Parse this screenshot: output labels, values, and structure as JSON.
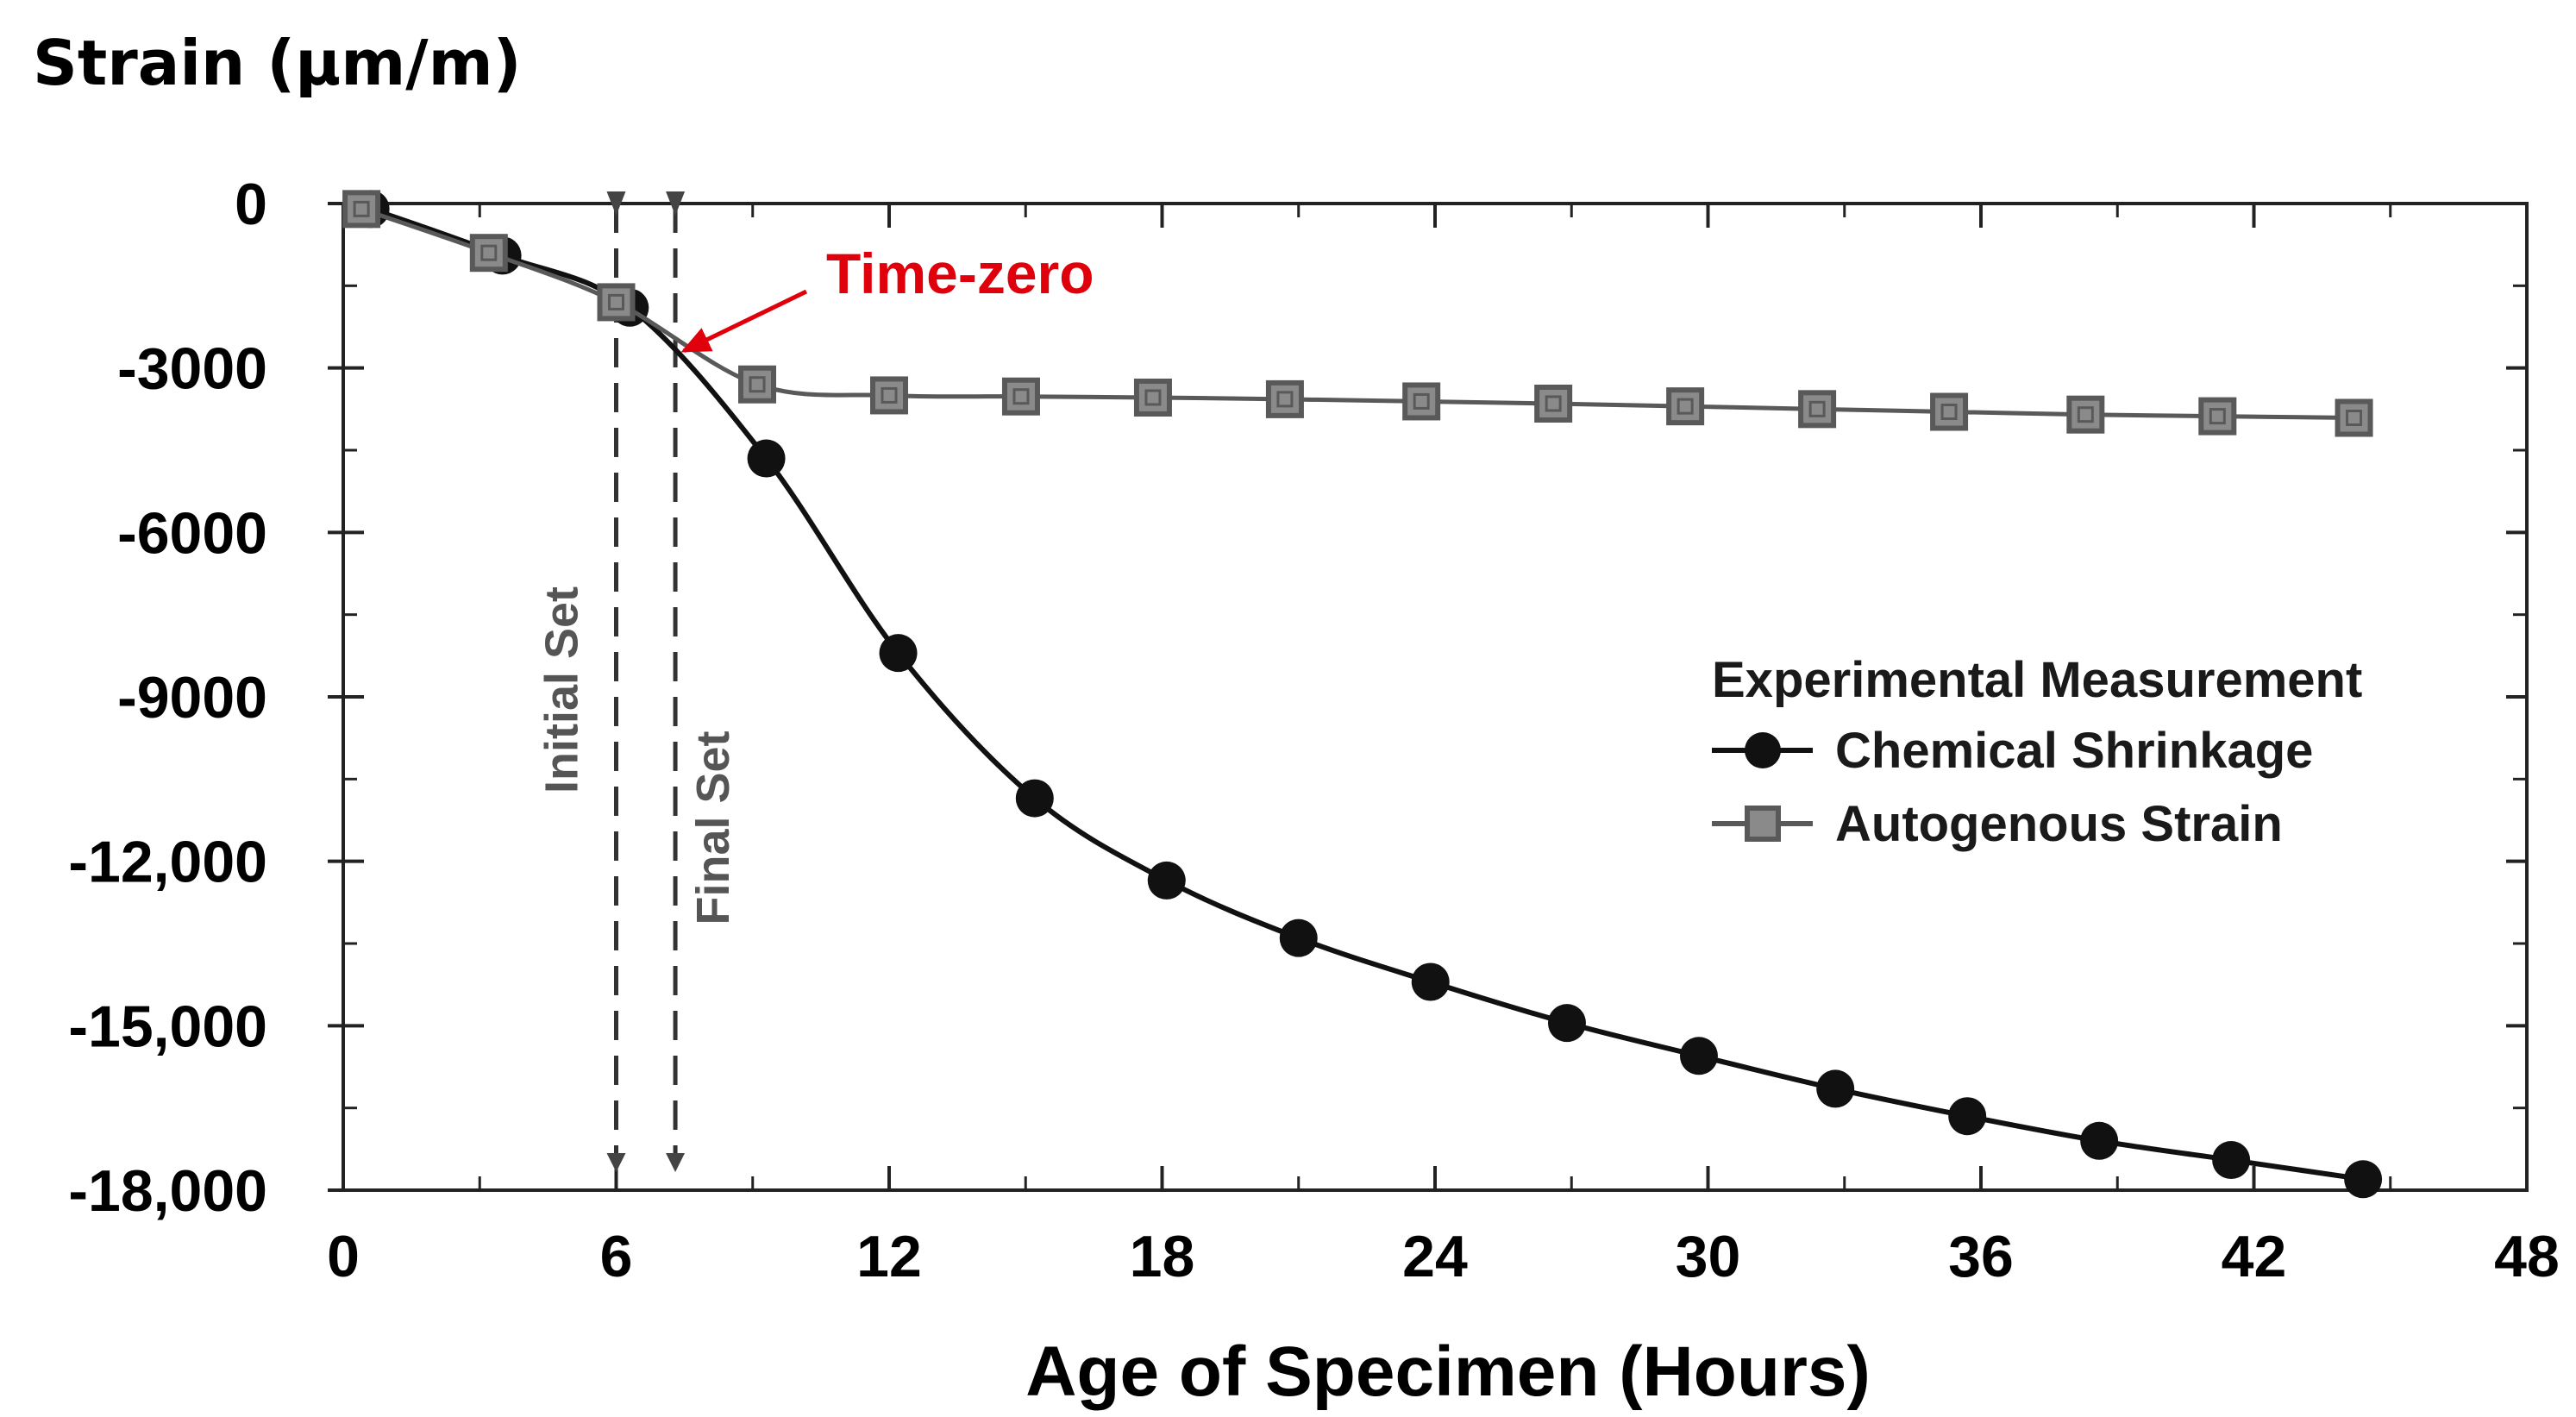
{
  "chart_data": {
    "type": "line",
    "title": "",
    "ylabel": "Strain (µm/m)",
    "xlabel": "Age of Specimen (Hours)",
    "xlim": [
      0,
      48
    ],
    "ylim": [
      -18000,
      0
    ],
    "grid": false,
    "xticks": [
      0,
      6,
      12,
      18,
      24,
      30,
      36,
      42,
      48
    ],
    "xtick_labels": [
      "0",
      "6",
      "12",
      "18",
      "24",
      "30",
      "36",
      "42",
      "48"
    ],
    "yticks": [
      0,
      -3000,
      -6000,
      -9000,
      -12000,
      -15000,
      -18000
    ],
    "ytick_labels": [
      "0",
      "-3000",
      "-6000",
      "-9000",
      "-12,000",
      "-15,000",
      "-18,000"
    ],
    "legend": {
      "position": "center-right",
      "title": "Experimental Measurement",
      "entries": [
        "Chemical Shrinkage",
        "Autogenous Strain"
      ]
    },
    "series": [
      {
        "name": "Chemical Shrinkage",
        "marker": "circle",
        "color": "#111111",
        "x": [
          0.6,
          3.5,
          6.3,
          9.3,
          12.2,
          15.2,
          18.1,
          21.0,
          23.9,
          26.9,
          29.8,
          32.8,
          35.7,
          38.6,
          41.5,
          44.4
        ],
        "y": [
          -100,
          -950,
          -1900,
          -4650,
          -8200,
          -10850,
          -12350,
          -13400,
          -14200,
          -14950,
          -15550,
          -16150,
          -16650,
          -17100,
          -17450,
          -17800
        ]
      },
      {
        "name": "Autogenous Strain",
        "marker": "square",
        "color": "#595959",
        "x": [
          0.4,
          3.2,
          6.0,
          9.1,
          12.0,
          14.9,
          17.8,
          20.7,
          23.7,
          26.6,
          29.5,
          32.4,
          35.3,
          38.3,
          41.2,
          44.2
        ],
        "y": [
          -100,
          -900,
          -1800,
          -3300,
          -3500,
          -3520,
          -3540,
          -3570,
          -3610,
          -3650,
          -3700,
          -3750,
          -3800,
          -3850,
          -3880,
          -3910
        ]
      }
    ],
    "vertical_lines": [
      {
        "label": "Initial Set",
        "x": 6.0
      },
      {
        "label": "Final Set",
        "x": 7.3
      }
    ],
    "annotations": [
      {
        "text": "Time-zero",
        "x": 7.3,
        "y": -2750,
        "color": "#e0000c"
      }
    ]
  }
}
